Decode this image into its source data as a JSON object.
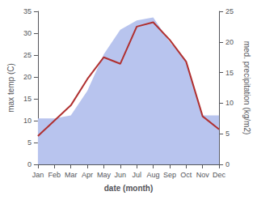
{
  "chart_data": {
    "type": "line",
    "xlabel": "date (month)",
    "ylabel": "max temp (C)",
    "y2label": "med. precipitation (kg/m2)",
    "categories": [
      "Jan",
      "Feb",
      "Mar",
      "Apr",
      "May",
      "Jun",
      "Jul",
      "Aug",
      "Sep",
      "Oct",
      "Nov",
      "Dec"
    ],
    "series": [
      {
        "type": "area",
        "axis": "y2",
        "color": "#b8c4ee",
        "values": [
          7.5,
          7.5,
          8.0,
          12.0,
          18.0,
          22.0,
          23.5,
          24.0,
          20.0,
          17.0,
          8.0,
          8.0
        ]
      },
      {
        "type": "line",
        "color": "#b03030",
        "values": [
          6.5,
          10.0,
          13.5,
          19.5,
          24.5,
          23.0,
          31.5,
          32.5,
          28.5,
          23.5,
          11.0,
          8.0
        ]
      }
    ],
    "ylim": [
      0,
      35
    ],
    "yticks": [
      0,
      5,
      10,
      15,
      20,
      25,
      30,
      35
    ],
    "y2lim": [
      0,
      25
    ],
    "y2ticks": [
      0,
      5,
      10,
      15,
      20,
      25
    ],
    "grid": false
  }
}
